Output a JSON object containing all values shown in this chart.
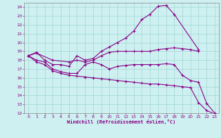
{
  "xlabel": "Windchill (Refroidissement éolien,°C)",
  "bg_color": "#cef0f0",
  "grid_color": "#a8dada",
  "line_color": "#880088",
  "spine_color": "#888888",
  "xlim": [
    -0.5,
    23.5
  ],
  "ylim": [
    12,
    24.5
  ],
  "yticks": [
    12,
    13,
    14,
    15,
    16,
    17,
    18,
    19,
    20,
    21,
    22,
    23,
    24
  ],
  "xticks": [
    0,
    1,
    2,
    3,
    4,
    5,
    6,
    7,
    8,
    9,
    10,
    11,
    12,
    13,
    14,
    15,
    16,
    17,
    18,
    19,
    20,
    21,
    22,
    23
  ],
  "line1_x": [
    0,
    1,
    2,
    3,
    4,
    5,
    6,
    7,
    8,
    9,
    10,
    11,
    12,
    13,
    14,
    15,
    16,
    17,
    18,
    21
  ],
  "line1_y": [
    18.5,
    18.9,
    18.0,
    17.5,
    17.5,
    17.3,
    18.5,
    18.0,
    18.2,
    19.0,
    19.5,
    20.0,
    20.5,
    21.3,
    22.6,
    23.2,
    24.1,
    24.2,
    23.2,
    19.2
  ],
  "line2_x": [
    0,
    1,
    3,
    5,
    6,
    7,
    8,
    9,
    10,
    11,
    12,
    13,
    14,
    15,
    16,
    17,
    18,
    19,
    20,
    21
  ],
  "line2_y": [
    18.5,
    18.8,
    18.0,
    17.8,
    18.0,
    17.8,
    18.0,
    18.5,
    18.9,
    19.0,
    19.0,
    19.0,
    19.0,
    19.0,
    19.2,
    19.3,
    19.4,
    19.3,
    19.2,
    19.0
  ],
  "line3_x": [
    0,
    1,
    2,
    3,
    4,
    5,
    6,
    7,
    8,
    9,
    10,
    11,
    12,
    13,
    14,
    15,
    16,
    17,
    18,
    19,
    20,
    21,
    22,
    23
  ],
  "line3_y": [
    18.5,
    18.0,
    17.8,
    17.0,
    16.7,
    16.5,
    16.5,
    17.5,
    17.8,
    17.5,
    17.0,
    17.3,
    17.4,
    17.5,
    17.5,
    17.5,
    17.5,
    17.6,
    17.5,
    16.3,
    15.7,
    15.5,
    13.1,
    12.0
  ],
  "line4_x": [
    0,
    1,
    2,
    3,
    4,
    5,
    6,
    7,
    8,
    9,
    10,
    11,
    12,
    13,
    14,
    15,
    16,
    17,
    18,
    19,
    20,
    21,
    22,
    23
  ],
  "line4_y": [
    18.5,
    17.8,
    17.5,
    16.8,
    16.5,
    16.3,
    16.2,
    16.1,
    16.0,
    15.9,
    15.8,
    15.7,
    15.6,
    15.5,
    15.4,
    15.3,
    15.3,
    15.2,
    15.1,
    15.0,
    14.9,
    13.2,
    12.3,
    11.9
  ]
}
